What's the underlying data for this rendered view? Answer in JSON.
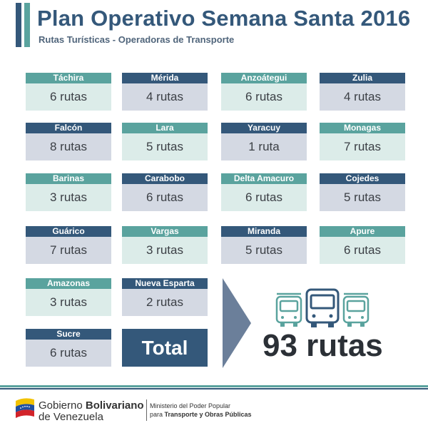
{
  "header": {
    "title": "Plan Operativo Semana Santa 2016",
    "subtitle": "Rutas Turísticas - Operadoras de Transporte"
  },
  "states": [
    {
      "name": "Táchira",
      "routes": "6 rutas",
      "color": "#5aa39e"
    },
    {
      "name": "Mérida",
      "routes": "4 rutas",
      "color": "#34587a"
    },
    {
      "name": "Anzoátegui",
      "routes": "6 rutas",
      "color": "#5aa39e"
    },
    {
      "name": "Zulia",
      "routes": "4 rutas",
      "color": "#34587a"
    },
    {
      "name": "Falcón",
      "routes": "8 rutas",
      "color": "#34587a"
    },
    {
      "name": "Lara",
      "routes": "5 rutas",
      "color": "#5aa39e"
    },
    {
      "name": "Yaracuy",
      "routes": "1 ruta",
      "color": "#34587a"
    },
    {
      "name": "Monagas",
      "routes": "7 rutas",
      "color": "#5aa39e"
    },
    {
      "name": "Barinas",
      "routes": "3 rutas",
      "color": "#5aa39e"
    },
    {
      "name": "Carabobo",
      "routes": "6 rutas",
      "color": "#34587a"
    },
    {
      "name": "Delta Amacuro",
      "routes": "6 rutas",
      "color": "#5aa39e"
    },
    {
      "name": "Cojedes",
      "routes": "5 rutas",
      "color": "#34587a"
    },
    {
      "name": "Guárico",
      "routes": "7 rutas",
      "color": "#34587a"
    },
    {
      "name": "Vargas",
      "routes": "3 rutas",
      "color": "#5aa39e"
    },
    {
      "name": "Miranda",
      "routes": "5 rutas",
      "color": "#34587a"
    },
    {
      "name": "Apure",
      "routes": "6 rutas",
      "color": "#5aa39e"
    },
    {
      "name": "Amazonas",
      "routes": "3 rutas",
      "color": "#5aa39e"
    },
    {
      "name": "Nueva Esparta",
      "routes": "2 rutas",
      "color": "#34587a"
    },
    {
      "name": "Sucre",
      "routes": "6 rutas",
      "color": "#34587a"
    }
  ],
  "total": {
    "label": "Total",
    "value": "93 rutas"
  },
  "footer": {
    "gov_prefix": "Gobierno ",
    "gov_bold": "Bolivariano",
    "gov_line2": "de Venezuela",
    "ministry_line1": "Ministerio del Poder Popular",
    "ministry_prefix": "para ",
    "ministry_bold": "Transporte y Obras Públicas"
  },
  "icons": {
    "flag": "venezuela-flag-icon",
    "buses": "bus-icon"
  },
  "colors": {
    "navy": "#34587a",
    "teal": "#5aa39e",
    "navy_light": "#d4d9e3",
    "teal_light": "#dcece9"
  }
}
